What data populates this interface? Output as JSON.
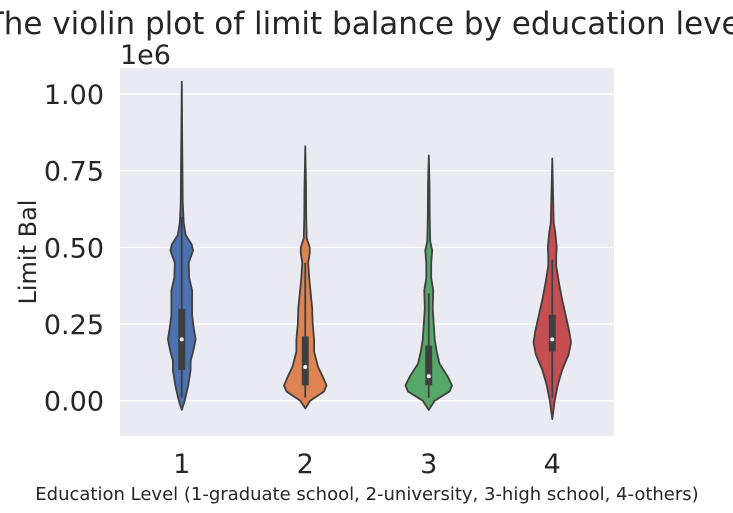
{
  "chart_data": {
    "type": "violin",
    "title": "The violin plot of limit balance by education level",
    "xlabel": "Education Level (1-graduate school, 2-university, 3-high school, 4-others)",
    "ylabel": "Limit Bal",
    "y_offset_label": "1e6",
    "categories": [
      "1",
      "2",
      "3",
      "4"
    ],
    "yticks": [
      "0.00",
      "0.25",
      "0.50",
      "0.75",
      "1.00"
    ],
    "ylim": [
      -0.115,
      1.085
    ],
    "y_scale_note": "values in units of 1e6",
    "background_color": "#eaeaf2",
    "grid": true,
    "series": [
      {
        "category": "1",
        "color": "#4c72b0",
        "min": -0.03,
        "max": 1.04,
        "q1": 0.1,
        "median": 0.2,
        "q3": 0.3,
        "whisker_low": 0.01,
        "whisker_high": 0.6,
        "density": [
          [
            -0.03,
            0.0
          ],
          [
            0.0,
            0.06
          ],
          [
            0.05,
            0.13
          ],
          [
            0.1,
            0.18
          ],
          [
            0.13,
            0.18
          ],
          [
            0.16,
            0.23
          ],
          [
            0.2,
            0.28
          ],
          [
            0.24,
            0.24
          ],
          [
            0.28,
            0.21
          ],
          [
            0.32,
            0.21
          ],
          [
            0.36,
            0.21
          ],
          [
            0.4,
            0.15
          ],
          [
            0.45,
            0.14
          ],
          [
            0.49,
            0.23
          ],
          [
            0.51,
            0.2
          ],
          [
            0.54,
            0.08
          ],
          [
            0.58,
            0.04
          ],
          [
            0.65,
            0.02
          ],
          [
            0.75,
            0.015
          ],
          [
            0.85,
            0.01
          ],
          [
            1.04,
            0.0
          ]
        ]
      },
      {
        "category": "2",
        "color": "#dd8452",
        "min": -0.025,
        "max": 0.83,
        "q1": 0.05,
        "median": 0.11,
        "q3": 0.21,
        "whisker_low": 0.01,
        "whisker_high": 0.45,
        "density": [
          [
            -0.025,
            0.0
          ],
          [
            0.0,
            0.1
          ],
          [
            0.03,
            0.38
          ],
          [
            0.05,
            0.43
          ],
          [
            0.08,
            0.35
          ],
          [
            0.11,
            0.26
          ],
          [
            0.16,
            0.18
          ],
          [
            0.2,
            0.18
          ],
          [
            0.25,
            0.15
          ],
          [
            0.3,
            0.14
          ],
          [
            0.35,
            0.11
          ],
          [
            0.4,
            0.08
          ],
          [
            0.45,
            0.06
          ],
          [
            0.48,
            0.09
          ],
          [
            0.5,
            0.09
          ],
          [
            0.53,
            0.03
          ],
          [
            0.6,
            0.02
          ],
          [
            0.7,
            0.015
          ],
          [
            0.83,
            0.0
          ]
        ]
      },
      {
        "category": "3",
        "color": "#55a868",
        "min": -0.03,
        "max": 0.8,
        "q1": 0.05,
        "median": 0.08,
        "q3": 0.18,
        "whisker_low": 0.01,
        "whisker_high": 0.35,
        "density": [
          [
            -0.03,
            0.0
          ],
          [
            0.0,
            0.12
          ],
          [
            0.03,
            0.42
          ],
          [
            0.05,
            0.47
          ],
          [
            0.08,
            0.38
          ],
          [
            0.12,
            0.22
          ],
          [
            0.16,
            0.16
          ],
          [
            0.2,
            0.12
          ],
          [
            0.25,
            0.1
          ],
          [
            0.3,
            0.08
          ],
          [
            0.36,
            0.09
          ],
          [
            0.4,
            0.05
          ],
          [
            0.45,
            0.05
          ],
          [
            0.49,
            0.07
          ],
          [
            0.52,
            0.03
          ],
          [
            0.6,
            0.02
          ],
          [
            0.7,
            0.015
          ],
          [
            0.8,
            0.0
          ]
        ]
      },
      {
        "category": "4",
        "color": "#c44e52",
        "min": -0.06,
        "max": 0.79,
        "q1": 0.16,
        "median": 0.2,
        "q3": 0.28,
        "whisker_low": 0.01,
        "whisker_high": 0.46,
        "density": [
          [
            -0.06,
            0.0
          ],
          [
            0.0,
            0.05
          ],
          [
            0.05,
            0.11
          ],
          [
            0.1,
            0.2
          ],
          [
            0.15,
            0.33
          ],
          [
            0.19,
            0.38
          ],
          [
            0.23,
            0.34
          ],
          [
            0.28,
            0.27
          ],
          [
            0.33,
            0.2
          ],
          [
            0.38,
            0.14
          ],
          [
            0.44,
            0.08
          ],
          [
            0.47,
            0.08
          ],
          [
            0.5,
            0.09
          ],
          [
            0.55,
            0.06
          ],
          [
            0.58,
            0.03
          ],
          [
            0.65,
            0.02
          ],
          [
            0.79,
            0.0
          ]
        ]
      }
    ]
  }
}
